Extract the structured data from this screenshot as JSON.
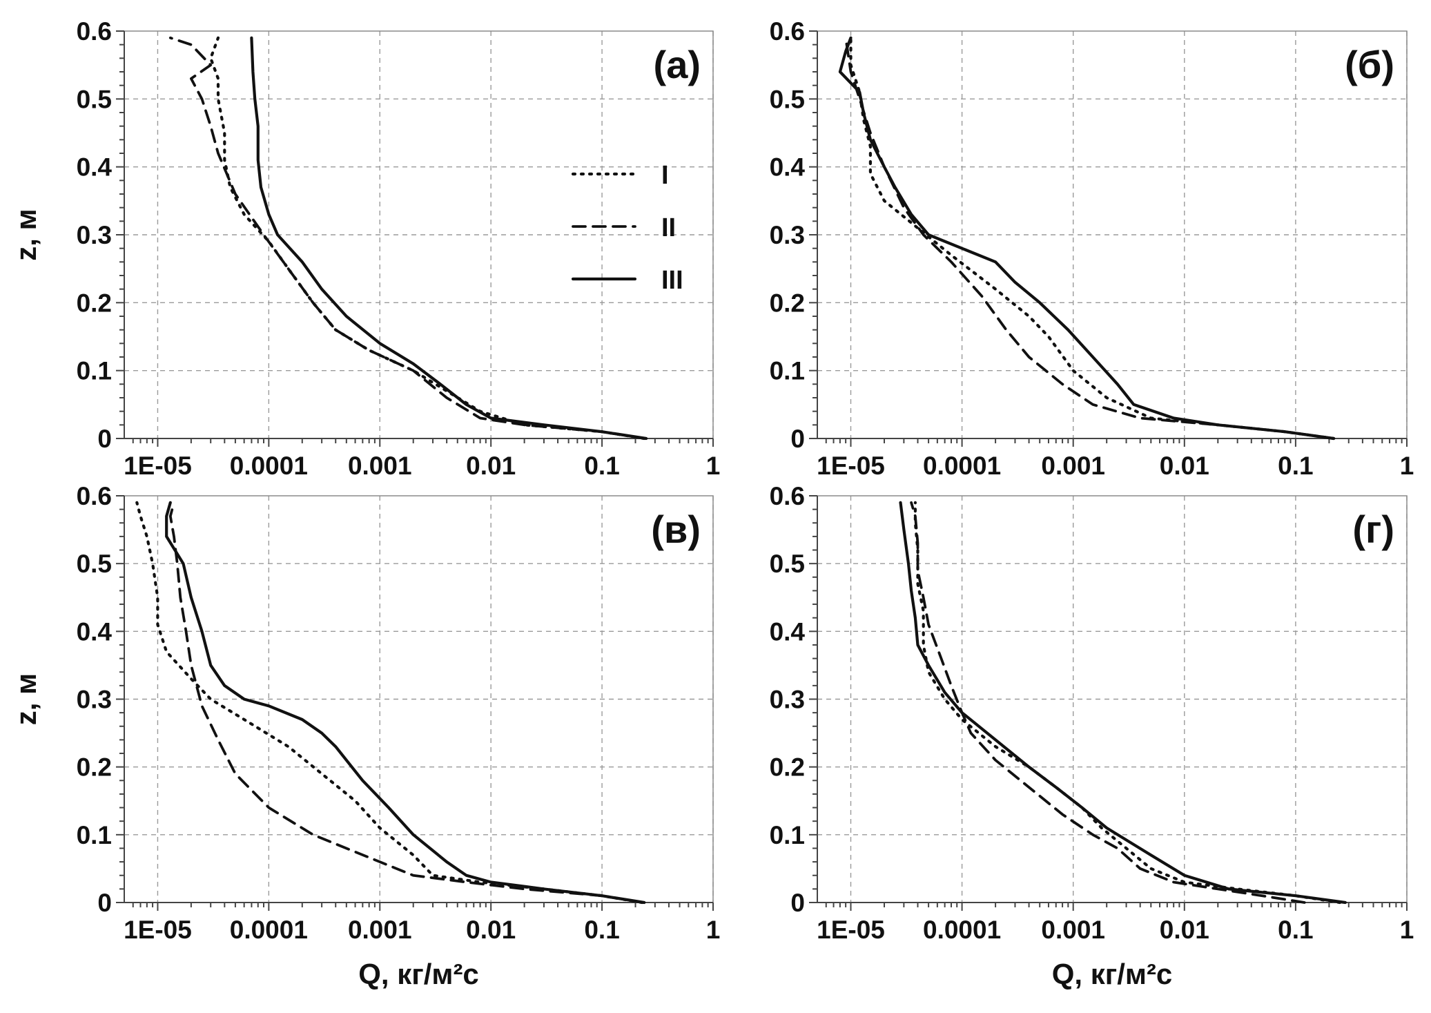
{
  "chart_data": [
    {
      "panel": "(a)",
      "type": "line",
      "xscale": "log",
      "xlim": [
        5e-06,
        1
      ],
      "ylim": [
        0,
        0.6
      ],
      "x_tick_labels": [
        "1E-05",
        "0.0001",
        "0.001",
        "0.01",
        "0.1",
        "1"
      ],
      "y_tick_labels": [
        "0",
        "0.1",
        "0.2",
        "0.3",
        "0.4",
        "0.5",
        "0.6"
      ],
      "grid": true,
      "xlabel": "",
      "ylabel": "z, м",
      "legend": {
        "position": "top-right",
        "entries": [
          "I",
          "II",
          "III"
        ]
      },
      "series": [
        {
          "name": "I",
          "style": "dotted",
          "points": [
            [
              0.24,
              0
            ],
            [
              0.1,
              0.01
            ],
            [
              0.02,
              0.02
            ],
            [
              0.008,
              0.04
            ],
            [
              0.004,
              0.07
            ],
            [
              0.002,
              0.1
            ],
            [
              0.0008,
              0.13
            ],
            [
              0.0004,
              0.16
            ],
            [
              0.00025,
              0.2
            ],
            [
              0.00015,
              0.25
            ],
            [
              0.0001,
              0.29
            ],
            [
              6e-05,
              0.33
            ],
            [
              4.5e-05,
              0.37
            ],
            [
              4e-05,
              0.41
            ],
            [
              4e-05,
              0.45
            ],
            [
              3.5e-05,
              0.5
            ],
            [
              3.5e-05,
              0.53
            ],
            [
              3e-05,
              0.56
            ],
            [
              3.5e-05,
              0.59
            ]
          ]
        },
        {
          "name": "II",
          "style": "dashed",
          "points": [
            [
              0.24,
              0
            ],
            [
              0.1,
              0.01
            ],
            [
              0.02,
              0.02
            ],
            [
              0.008,
              0.03
            ],
            [
              0.004,
              0.06
            ],
            [
              0.002,
              0.1
            ],
            [
              0.0008,
              0.13
            ],
            [
              0.0004,
              0.16
            ],
            [
              0.00025,
              0.2
            ],
            [
              0.00015,
              0.25
            ],
            [
              9e-05,
              0.3
            ],
            [
              5e-05,
              0.36
            ],
            [
              3.5e-05,
              0.42
            ],
            [
              3e-05,
              0.46
            ],
            [
              2.5e-05,
              0.5
            ],
            [
              2e-05,
              0.53
            ],
            [
              3e-05,
              0.55
            ],
            [
              2e-05,
              0.58
            ],
            [
              1.3e-05,
              0.59
            ]
          ]
        },
        {
          "name": "III",
          "style": "solid",
          "points": [
            [
              0.25,
              0
            ],
            [
              0.1,
              0.01
            ],
            [
              0.03,
              0.02
            ],
            [
              0.01,
              0.03
            ],
            [
              0.006,
              0.05
            ],
            [
              0.0035,
              0.08
            ],
            [
              0.002,
              0.11
            ],
            [
              0.001,
              0.14
            ],
            [
              0.0005,
              0.18
            ],
            [
              0.0003,
              0.22
            ],
            [
              0.0002,
              0.26
            ],
            [
              0.00012,
              0.3
            ],
            [
              0.0001,
              0.33
            ],
            [
              8.5e-05,
              0.37
            ],
            [
              8e-05,
              0.41
            ],
            [
              8e-05,
              0.46
            ],
            [
              7.5e-05,
              0.5
            ],
            [
              7.2e-05,
              0.54
            ],
            [
              7e-05,
              0.59
            ]
          ]
        }
      ]
    },
    {
      "panel": "(б)",
      "type": "line",
      "xscale": "log",
      "xlim": [
        5e-06,
        1
      ],
      "ylim": [
        0,
        0.6
      ],
      "x_tick_labels": [
        "1E-05",
        "0.0001",
        "0.001",
        "0.01",
        "0.1",
        "1"
      ],
      "y_tick_labels": [
        "0",
        "0.1",
        "0.2",
        "0.3",
        "0.4",
        "0.5",
        "0.6"
      ],
      "grid": true,
      "xlabel": "",
      "ylabel": "",
      "series": [
        {
          "name": "I",
          "style": "dotted",
          "points": [
            [
              0.22,
              0
            ],
            [
              0.08,
              0.01
            ],
            [
              0.02,
              0.02
            ],
            [
              0.005,
              0.03
            ],
            [
              0.002,
              0.06
            ],
            [
              0.001,
              0.1
            ],
            [
              0.0006,
              0.15
            ],
            [
              0.0004,
              0.18
            ],
            [
              0.0002,
              0.22
            ],
            [
              8e-05,
              0.27
            ],
            [
              4e-05,
              0.31
            ],
            [
              2e-05,
              0.35
            ],
            [
              1.5e-05,
              0.39
            ],
            [
              1.5e-05,
              0.43
            ],
            [
              1.3e-05,
              0.47
            ],
            [
              1.2e-05,
              0.51
            ],
            [
              1e-05,
              0.55
            ],
            [
              1e-05,
              0.59
            ]
          ]
        },
        {
          "name": "II",
          "style": "dashed",
          "points": [
            [
              0.22,
              0
            ],
            [
              0.08,
              0.01
            ],
            [
              0.02,
              0.02
            ],
            [
              0.004,
              0.03
            ],
            [
              0.0015,
              0.05
            ],
            [
              0.0008,
              0.08
            ],
            [
              0.0004,
              0.12
            ],
            [
              0.00025,
              0.16
            ],
            [
              0.00015,
              0.21
            ],
            [
              8e-05,
              0.26
            ],
            [
              4.5e-05,
              0.3
            ],
            [
              3e-05,
              0.34
            ],
            [
              2e-05,
              0.4
            ],
            [
              1.5e-05,
              0.45
            ],
            [
              1.2e-05,
              0.5
            ],
            [
              1e-05,
              0.54
            ],
            [
              9e-06,
              0.59
            ]
          ]
        },
        {
          "name": "III",
          "style": "solid",
          "points": [
            [
              0.22,
              0
            ],
            [
              0.08,
              0.01
            ],
            [
              0.02,
              0.02
            ],
            [
              0.008,
              0.03
            ],
            [
              0.0035,
              0.05
            ],
            [
              0.0025,
              0.08
            ],
            [
              0.0015,
              0.12
            ],
            [
              0.0009,
              0.16
            ],
            [
              0.0005,
              0.2
            ],
            [
              0.0003,
              0.23
            ],
            [
              0.0002,
              0.26
            ],
            [
              0.0001,
              0.28
            ],
            [
              5e-05,
              0.3
            ],
            [
              3.5e-05,
              0.33
            ],
            [
              2.5e-05,
              0.37
            ],
            [
              2e-05,
              0.4
            ],
            [
              1.5e-05,
              0.44
            ],
            [
              1.3e-05,
              0.48
            ],
            [
              1.2e-05,
              0.51
            ],
            [
              8e-06,
              0.54
            ],
            [
              9e-06,
              0.57
            ],
            [
              1e-05,
              0.59
            ]
          ]
        }
      ]
    },
    {
      "panel": "(в)",
      "type": "line",
      "xscale": "log",
      "xlim": [
        5e-06,
        1
      ],
      "ylim": [
        0,
        0.6
      ],
      "x_tick_labels": [
        "1E-05",
        "0.0001",
        "0.001",
        "0.01",
        "0.1",
        "1"
      ],
      "y_tick_labels": [
        "0",
        "0.1",
        "0.2",
        "0.3",
        "0.4",
        "0.5",
        "0.6"
      ],
      "grid": true,
      "xlabel": "Q, кг/м²с",
      "ylabel": "z, м",
      "series": [
        {
          "name": "I",
          "style": "dotted",
          "points": [
            [
              0.23,
              0
            ],
            [
              0.1,
              0.01
            ],
            [
              0.03,
              0.02
            ],
            [
              0.008,
              0.03
            ],
            [
              0.003,
              0.04
            ],
            [
              0.002,
              0.07
            ],
            [
              0.001,
              0.11
            ],
            [
              0.0006,
              0.15
            ],
            [
              0.0003,
              0.19
            ],
            [
              0.00015,
              0.23
            ],
            [
              6e-05,
              0.27
            ],
            [
              3e-05,
              0.3
            ],
            [
              2e-05,
              0.33
            ],
            [
              1.2e-05,
              0.37
            ],
            [
              1e-05,
              0.41
            ],
            [
              1e-05,
              0.45
            ],
            [
              9e-06,
              0.5
            ],
            [
              8e-06,
              0.54
            ],
            [
              7e-06,
              0.57
            ],
            [
              6.5e-06,
              0.59
            ]
          ]
        },
        {
          "name": "II",
          "style": "dashed",
          "points": [
            [
              0.23,
              0
            ],
            [
              0.1,
              0.01
            ],
            [
              0.02,
              0.02
            ],
            [
              0.006,
              0.03
            ],
            [
              0.002,
              0.04
            ],
            [
              0.001,
              0.06
            ],
            [
              0.0005,
              0.08
            ],
            [
              0.00025,
              0.1
            ],
            [
              0.0001,
              0.14
            ],
            [
              5e-05,
              0.19
            ],
            [
              3.5e-05,
              0.24
            ],
            [
              2.5e-05,
              0.29
            ],
            [
              2e-05,
              0.35
            ],
            [
              1.8e-05,
              0.4
            ],
            [
              1.6e-05,
              0.45
            ],
            [
              1.5e-05,
              0.5
            ],
            [
              1.4e-05,
              0.54
            ],
            [
              1.3e-05,
              0.57
            ],
            [
              1.4e-05,
              0.59
            ]
          ]
        },
        {
          "name": "III",
          "style": "solid",
          "points": [
            [
              0.24,
              0
            ],
            [
              0.1,
              0.01
            ],
            [
              0.03,
              0.02
            ],
            [
              0.01,
              0.03
            ],
            [
              0.006,
              0.04
            ],
            [
              0.004,
              0.06
            ],
            [
              0.002,
              0.1
            ],
            [
              0.0012,
              0.14
            ],
            [
              0.0007,
              0.18
            ],
            [
              0.0004,
              0.23
            ],
            [
              0.0003,
              0.25
            ],
            [
              0.0002,
              0.27
            ],
            [
              0.0001,
              0.29
            ],
            [
              6e-05,
              0.3
            ],
            [
              4e-05,
              0.32
            ],
            [
              3e-05,
              0.35
            ],
            [
              2.5e-05,
              0.4
            ],
            [
              2e-05,
              0.45
            ],
            [
              1.7e-05,
              0.5
            ],
            [
              1.2e-05,
              0.54
            ],
            [
              1.2e-05,
              0.57
            ],
            [
              1.3e-05,
              0.59
            ]
          ]
        }
      ]
    },
    {
      "panel": "(г)",
      "type": "line",
      "xscale": "log",
      "xlim": [
        5e-06,
        1
      ],
      "ylim": [
        0,
        0.6
      ],
      "x_tick_labels": [
        "1E-05",
        "0.0001",
        "0.001",
        "0.01",
        "0.1",
        "1"
      ],
      "y_tick_labels": [
        "0",
        "0.1",
        "0.2",
        "0.3",
        "0.4",
        "0.5",
        "0.6"
      ],
      "grid": true,
      "xlabel": "Q, кг/м²с",
      "ylabel": "",
      "series": [
        {
          "name": "I",
          "style": "dotted",
          "points": [
            [
              0.25,
              0
            ],
            [
              0.1,
              0.01
            ],
            [
              0.03,
              0.02
            ],
            [
              0.01,
              0.03
            ],
            [
              0.005,
              0.05
            ],
            [
              0.003,
              0.08
            ],
            [
              0.0018,
              0.11
            ],
            [
              0.0012,
              0.14
            ],
            [
              0.0007,
              0.17
            ],
            [
              0.0004,
              0.2
            ],
            [
              0.0002,
              0.23
            ],
            [
              0.0001,
              0.27
            ],
            [
              7e-05,
              0.3
            ],
            [
              5e-05,
              0.34
            ],
            [
              4.5e-05,
              0.38
            ],
            [
              4.5e-05,
              0.43
            ],
            [
              4e-05,
              0.47
            ],
            [
              4e-05,
              0.52
            ],
            [
              3.8e-05,
              0.56
            ],
            [
              3.8e-05,
              0.59
            ]
          ]
        },
        {
          "name": "II",
          "style": "dashed",
          "points": [
            [
              0.12,
              0
            ],
            [
              0.05,
              0.01
            ],
            [
              0.02,
              0.02
            ],
            [
              0.008,
              0.03
            ],
            [
              0.004,
              0.05
            ],
            [
              0.0025,
              0.08
            ],
            [
              0.0015,
              0.1
            ],
            [
              0.0008,
              0.13
            ],
            [
              0.0004,
              0.17
            ],
            [
              0.0002,
              0.21
            ],
            [
              0.00012,
              0.25
            ],
            [
              0.0001,
              0.28
            ],
            [
              8e-05,
              0.32
            ],
            [
              6.5e-05,
              0.36
            ],
            [
              5e-05,
              0.41
            ],
            [
              4.5e-05,
              0.45
            ],
            [
              4e-05,
              0.49
            ],
            [
              4e-05,
              0.53
            ],
            [
              3.8e-05,
              0.57
            ],
            [
              3.5e-05,
              0.59
            ]
          ]
        },
        {
          "name": "III",
          "style": "solid",
          "points": [
            [
              0.28,
              0
            ],
            [
              0.1,
              0.01
            ],
            [
              0.025,
              0.02
            ],
            [
              0.01,
              0.04
            ],
            [
              0.005,
              0.07
            ],
            [
              0.002,
              0.11
            ],
            [
              0.0012,
              0.14
            ],
            [
              0.0007,
              0.17
            ],
            [
              0.0004,
              0.2
            ],
            [
              0.0002,
              0.24
            ],
            [
              0.0001,
              0.28
            ],
            [
              7e-05,
              0.31
            ],
            [
              5e-05,
              0.35
            ],
            [
              4e-05,
              0.38
            ],
            [
              3.8e-05,
              0.42
            ],
            [
              3.5e-05,
              0.46
            ],
            [
              3.3e-05,
              0.5
            ],
            [
              3e-05,
              0.55
            ],
            [
              2.8e-05,
              0.59
            ]
          ]
        }
      ]
    }
  ]
}
